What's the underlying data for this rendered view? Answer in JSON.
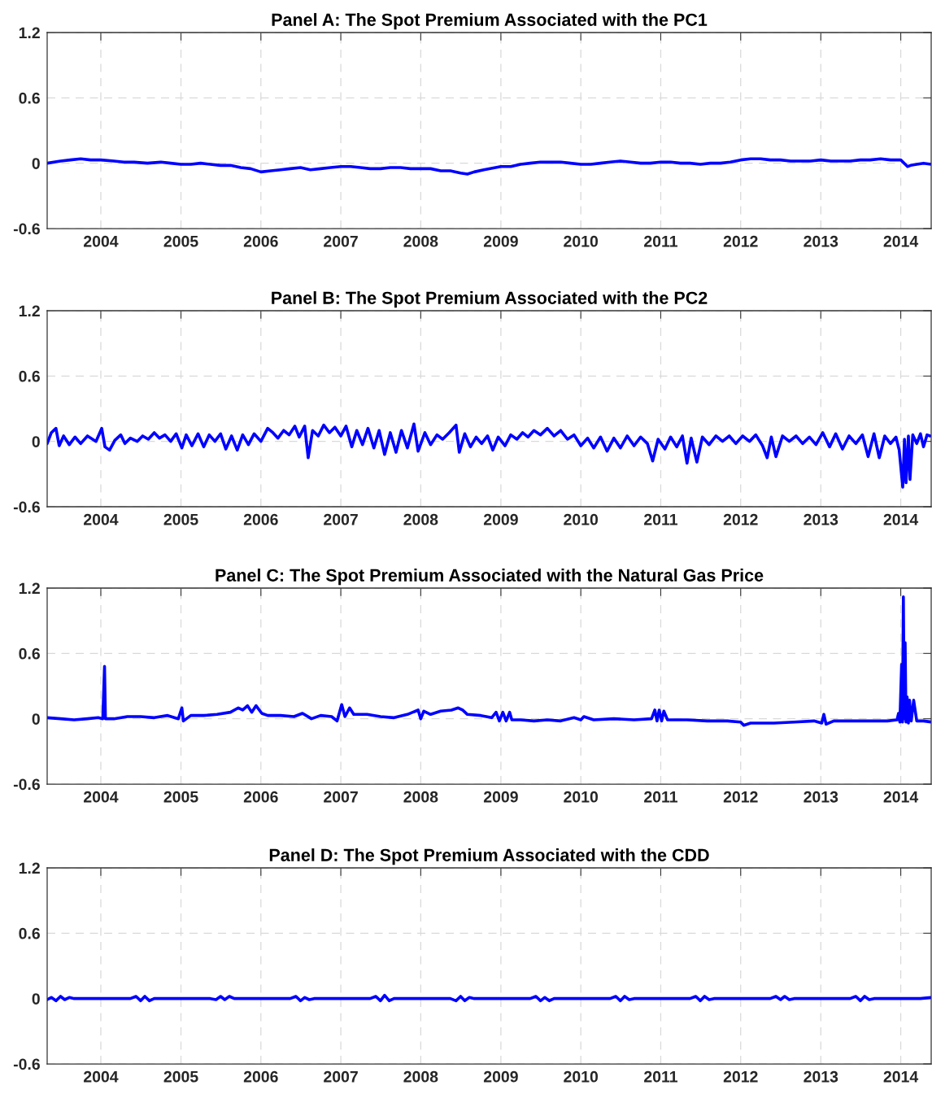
{
  "chart_data": [
    {
      "type": "line",
      "title": "Panel A: The Spot Premium Associated with the PC1",
      "xlim": [
        "2003-05-01",
        "2014-05-20"
      ],
      "ylim": [
        -0.6,
        1.2
      ],
      "yticks": [
        -0.6,
        0,
        0.6,
        1.2
      ],
      "xticks": [
        {
          "value": "2004-01-01",
          "label": "2004"
        },
        {
          "value": "2005-01-01",
          "label": "2005"
        },
        {
          "value": "2006-01-01",
          "label": "2006"
        },
        {
          "value": "2007-01-01",
          "label": "2007"
        },
        {
          "value": "2008-01-01",
          "label": "2008"
        },
        {
          "value": "2009-01-01",
          "label": "2009"
        },
        {
          "value": "2010-01-01",
          "label": "2010"
        },
        {
          "value": "2011-01-01",
          "label": "2011"
        },
        {
          "value": "2012-01-01",
          "label": "2012"
        },
        {
          "value": "2013-01-01",
          "label": "2013"
        },
        {
          "value": "2014-01-01",
          "label": "2014"
        }
      ],
      "grid": true,
      "series": [
        {
          "color": "#0000ff",
          "x": [
            "2003-05-01",
            "2003-07-01",
            "2003-08-15",
            "2003-10-01",
            "2003-11-15",
            "2004-01-01",
            "2004-03-01",
            "2004-04-15",
            "2004-06-01",
            "2004-08-01",
            "2004-10-01",
            "2004-11-15",
            "2005-01-01",
            "2005-02-15",
            "2005-04-01",
            "2005-05-15",
            "2005-07-01",
            "2005-08-15",
            "2005-10-01",
            "2005-11-15",
            "2006-01-01",
            "2006-02-15",
            "2006-04-01",
            "2006-05-15",
            "2006-07-01",
            "2006-08-15",
            "2006-10-01",
            "2006-11-15",
            "2007-01-01",
            "2007-02-15",
            "2007-04-01",
            "2007-05-15",
            "2007-07-01",
            "2007-08-15",
            "2007-10-01",
            "2007-11-15",
            "2008-01-01",
            "2008-02-15",
            "2008-04-01",
            "2008-05-15",
            "2008-07-01",
            "2008-08-01",
            "2008-09-01",
            "2008-10-15",
            "2009-01-01",
            "2009-02-15",
            "2009-04-01",
            "2009-05-15",
            "2009-07-01",
            "2009-08-15",
            "2009-10-01",
            "2009-11-15",
            "2010-01-01",
            "2010-02-15",
            "2010-04-01",
            "2010-05-15",
            "2010-07-01",
            "2010-08-15",
            "2010-10-01",
            "2010-11-15",
            "2011-01-01",
            "2011-02-15",
            "2011-04-01",
            "2011-05-15",
            "2011-07-01",
            "2011-08-15",
            "2011-10-01",
            "2011-11-15",
            "2012-01-01",
            "2012-02-15",
            "2012-04-01",
            "2012-05-15",
            "2012-07-01",
            "2012-08-15",
            "2012-10-01",
            "2012-11-15",
            "2013-01-01",
            "2013-02-15",
            "2013-04-01",
            "2013-05-15",
            "2013-07-01",
            "2013-08-15",
            "2013-10-01",
            "2013-11-15",
            "2014-01-01",
            "2014-02-01",
            "2014-02-15",
            "2014-03-15",
            "2014-04-15",
            "2014-05-20"
          ],
          "values": [
            0.0,
            0.02,
            0.03,
            0.04,
            0.03,
            0.03,
            0.02,
            0.01,
            0.01,
            0.0,
            0.01,
            0.0,
            -0.01,
            -0.01,
            0.0,
            -0.01,
            -0.02,
            -0.02,
            -0.04,
            -0.05,
            -0.08,
            -0.07,
            -0.06,
            -0.05,
            -0.04,
            -0.06,
            -0.05,
            -0.04,
            -0.03,
            -0.03,
            -0.04,
            -0.05,
            -0.05,
            -0.04,
            -0.04,
            -0.05,
            -0.05,
            -0.05,
            -0.07,
            -0.07,
            -0.09,
            -0.1,
            -0.08,
            -0.06,
            -0.03,
            -0.03,
            -0.01,
            0.0,
            0.01,
            0.01,
            0.01,
            0.0,
            -0.01,
            -0.01,
            0.0,
            0.01,
            0.02,
            0.01,
            0.0,
            0.0,
            0.01,
            0.01,
            0.0,
            0.0,
            -0.01,
            0.0,
            0.0,
            0.01,
            0.03,
            0.04,
            0.04,
            0.03,
            0.03,
            0.02,
            0.02,
            0.02,
            0.03,
            0.02,
            0.02,
            0.02,
            0.03,
            0.03,
            0.04,
            0.03,
            0.03,
            -0.03,
            -0.02,
            -0.01,
            0.0,
            -0.01
          ]
        }
      ]
    },
    {
      "type": "line",
      "title": "Panel B: The Spot Premium Associated with the PC2",
      "xlim": [
        "2003-05-01",
        "2014-05-20"
      ],
      "ylim": [
        -0.6,
        1.2
      ],
      "yticks": [
        -0.6,
        0,
        0.6,
        1.2
      ],
      "xticks": [
        {
          "value": "2004-01-01",
          "label": "2004"
        },
        {
          "value": "2005-01-01",
          "label": "2005"
        },
        {
          "value": "2006-01-01",
          "label": "2006"
        },
        {
          "value": "2007-01-01",
          "label": "2007"
        },
        {
          "value": "2008-01-01",
          "label": "2008"
        },
        {
          "value": "2009-01-01",
          "label": "2009"
        },
        {
          "value": "2010-01-01",
          "label": "2010"
        },
        {
          "value": "2011-01-01",
          "label": "2011"
        },
        {
          "value": "2012-01-01",
          "label": "2012"
        },
        {
          "value": "2013-01-01",
          "label": "2013"
        },
        {
          "value": "2014-01-01",
          "label": "2014"
        }
      ],
      "grid": true,
      "series": [
        {
          "color": "#0000ff",
          "x": [
            "2003-05-01",
            "2003-05-20",
            "2003-06-10",
            "2003-06-25",
            "2003-07-15",
            "2003-08-10",
            "2003-09-05",
            "2003-10-01",
            "2003-11-01",
            "2003-12-10",
            "2004-01-05",
            "2004-01-20",
            "2004-02-10",
            "2004-03-05",
            "2004-04-01",
            "2004-04-20",
            "2004-05-15",
            "2004-06-15",
            "2004-07-10",
            "2004-08-05",
            "2004-09-01",
            "2004-09-25",
            "2004-10-20",
            "2004-11-15",
            "2004-12-10",
            "2005-01-05",
            "2005-01-25",
            "2005-02-20",
            "2005-03-20",
            "2005-04-15",
            "2005-05-10",
            "2005-06-05",
            "2005-07-01",
            "2005-07-25",
            "2005-08-20",
            "2005-09-15",
            "2005-10-10",
            "2005-11-05",
            "2005-12-01",
            "2006-01-01",
            "2006-02-01",
            "2006-02-25",
            "2006-03-20",
            "2006-04-15",
            "2006-05-10",
            "2006-06-05",
            "2006-06-25",
            "2006-07-20",
            "2006-08-05",
            "2006-08-25",
            "2006-09-20",
            "2006-10-15",
            "2006-11-10",
            "2006-12-05",
            "2007-01-01",
            "2007-01-25",
            "2007-02-20",
            "2007-03-15",
            "2007-04-10",
            "2007-05-05",
            "2007-06-01",
            "2007-06-25",
            "2007-07-20",
            "2007-08-15",
            "2007-09-10",
            "2007-10-05",
            "2007-11-01",
            "2007-12-01",
            "2007-12-20",
            "2008-01-20",
            "2008-02-15",
            "2008-03-15",
            "2008-04-10",
            "2008-05-10",
            "2008-06-10",
            "2008-06-25",
            "2008-07-20",
            "2008-08-15",
            "2008-09-10",
            "2008-10-05",
            "2008-11-01",
            "2008-11-25",
            "2008-12-20",
            "2009-01-20",
            "2009-02-15",
            "2009-03-15",
            "2009-04-10",
            "2009-05-05",
            "2009-06-01",
            "2009-07-01",
            "2009-08-01",
            "2009-09-01",
            "2009-10-01",
            "2009-11-01",
            "2009-12-01",
            "2010-01-01",
            "2010-02-01",
            "2010-03-01",
            "2010-04-01",
            "2010-05-01",
            "2010-06-01",
            "2010-07-01",
            "2010-08-01",
            "2010-09-01",
            "2010-10-01",
            "2010-11-01",
            "2010-11-25",
            "2010-12-20",
            "2011-01-20",
            "2011-02-15",
            "2011-03-15",
            "2011-04-10",
            "2011-05-01",
            "2011-05-20",
            "2011-06-15",
            "2011-07-10",
            "2011-08-10",
            "2011-09-10",
            "2011-10-10",
            "2011-11-10",
            "2011-12-10",
            "2012-01-10",
            "2012-02-10",
            "2012-03-10",
            "2012-04-10",
            "2012-05-01",
            "2012-05-20",
            "2012-06-10",
            "2012-07-10",
            "2012-08-10",
            "2012-09-10",
            "2012-10-10",
            "2012-11-10",
            "2012-12-10",
            "2013-01-10",
            "2013-02-10",
            "2013-03-10",
            "2013-04-10",
            "2013-05-10",
            "2013-06-10",
            "2013-07-10",
            "2013-08-05",
            "2013-09-01",
            "2013-09-25",
            "2013-10-20",
            "2013-11-15",
            "2013-12-10",
            "2013-12-25",
            "2014-01-10",
            "2014-01-18",
            "2014-01-25",
            "2014-02-05",
            "2014-02-12",
            "2014-02-25",
            "2014-03-15",
            "2014-04-01",
            "2014-04-15",
            "2014-05-01",
            "2014-05-15"
          ],
          "values": [
            -0.02,
            0.08,
            0.12,
            -0.04,
            0.05,
            -0.03,
            0.04,
            -0.02,
            0.05,
            0.0,
            0.12,
            -0.05,
            -0.08,
            0.01,
            0.06,
            -0.02,
            0.03,
            0.0,
            0.05,
            0.02,
            0.08,
            0.03,
            0.06,
            0.0,
            0.07,
            -0.06,
            0.06,
            -0.04,
            0.07,
            -0.05,
            0.06,
            0.0,
            0.07,
            -0.07,
            0.05,
            -0.08,
            0.06,
            -0.03,
            0.07,
            0.0,
            0.12,
            0.08,
            0.03,
            0.1,
            0.06,
            0.14,
            0.04,
            0.14,
            -0.15,
            0.1,
            0.05,
            0.15,
            0.08,
            0.13,
            0.05,
            0.14,
            -0.05,
            0.1,
            -0.03,
            0.12,
            -0.06,
            0.1,
            -0.12,
            0.08,
            -0.1,
            0.1,
            -0.06,
            0.16,
            -0.09,
            0.08,
            -0.03,
            0.06,
            0.02,
            0.08,
            0.15,
            -0.1,
            0.07,
            -0.05,
            0.04,
            -0.02,
            0.05,
            -0.08,
            0.04,
            -0.04,
            0.06,
            0.02,
            0.08,
            0.04,
            0.1,
            0.06,
            0.12,
            0.05,
            0.1,
            0.02,
            0.06,
            -0.04,
            0.03,
            -0.06,
            0.04,
            -0.09,
            0.03,
            -0.06,
            0.05,
            -0.04,
            0.04,
            -0.02,
            -0.18,
            0.02,
            -0.07,
            0.04,
            -0.05,
            0.05,
            -0.2,
            0.03,
            -0.19,
            0.04,
            -0.03,
            0.05,
            0.0,
            0.05,
            -0.02,
            0.05,
            0.0,
            0.06,
            -0.04,
            -0.15,
            0.04,
            -0.14,
            0.05,
            0.0,
            0.05,
            -0.02,
            0.04,
            -0.03,
            0.08,
            -0.05,
            0.07,
            -0.07,
            0.05,
            -0.02,
            0.06,
            -0.14,
            0.07,
            -0.15,
            0.05,
            -0.02,
            0.04,
            -0.08,
            -0.42,
            0.02,
            -0.38,
            0.05,
            -0.35,
            0.06,
            -0.02,
            0.07,
            -0.05,
            0.06,
            0.05
          ]
        }
      ]
    },
    {
      "type": "line",
      "title": "Panel C: The Spot Premium Associated with the Natural Gas Price",
      "xlim": [
        "2003-05-01",
        "2014-05-20"
      ],
      "ylim": [
        -0.6,
        1.2
      ],
      "yticks": [
        -0.6,
        0,
        0.6,
        1.2
      ],
      "xticks": [
        {
          "value": "2004-01-01",
          "label": "2004"
        },
        {
          "value": "2005-01-01",
          "label": "2005"
        },
        {
          "value": "2006-01-01",
          "label": "2006"
        },
        {
          "value": "2007-01-01",
          "label": "2007"
        },
        {
          "value": "2008-01-01",
          "label": "2008"
        },
        {
          "value": "2009-01-01",
          "label": "2009"
        },
        {
          "value": "2010-01-01",
          "label": "2010"
        },
        {
          "value": "2011-01-01",
          "label": "2011"
        },
        {
          "value": "2012-01-01",
          "label": "2012"
        },
        {
          "value": "2013-01-01",
          "label": "2013"
        },
        {
          "value": "2014-01-01",
          "label": "2014"
        }
      ],
      "grid": true,
      "series": [
        {
          "color": "#0000ff",
          "x": [
            "2003-05-01",
            "2003-07-01",
            "2003-09-01",
            "2003-11-01",
            "2003-12-20",
            "2004-01-10",
            "2004-01-18",
            "2004-01-22",
            "2004-03-01",
            "2004-05-01",
            "2004-07-01",
            "2004-09-01",
            "2004-11-01",
            "2004-12-20",
            "2005-01-05",
            "2005-01-12",
            "2005-02-15",
            "2005-04-15",
            "2005-06-15",
            "2005-08-15",
            "2005-09-20",
            "2005-10-10",
            "2005-11-01",
            "2005-11-20",
            "2005-12-10",
            "2006-01-05",
            "2006-02-01",
            "2006-04-01",
            "2006-06-01",
            "2006-07-10",
            "2006-08-20",
            "2006-10-01",
            "2006-11-20",
            "2006-12-15",
            "2007-01-05",
            "2007-01-20",
            "2007-02-10",
            "2007-03-01",
            "2007-05-01",
            "2007-07-01",
            "2007-09-01",
            "2007-11-01",
            "2007-12-20",
            "2008-01-01",
            "2008-01-15",
            "2008-02-15",
            "2008-04-01",
            "2008-05-20",
            "2008-06-20",
            "2008-07-10",
            "2008-08-01",
            "2008-10-01",
            "2008-11-20",
            "2008-12-10",
            "2008-12-25",
            "2009-01-10",
            "2009-01-25",
            "2009-02-10",
            "2009-02-20",
            "2009-04-01",
            "2009-06-01",
            "2009-08-01",
            "2009-10-01",
            "2009-12-01",
            "2010-01-01",
            "2010-01-15",
            "2010-03-01",
            "2010-06-01",
            "2010-09-01",
            "2010-11-20",
            "2010-12-05",
            "2010-12-15",
            "2010-12-25",
            "2011-01-05",
            "2011-01-15",
            "2011-02-01",
            "2011-05-01",
            "2011-08-01",
            "2011-11-01",
            "2012-01-01",
            "2012-01-15",
            "2012-02-15",
            "2012-06-01",
            "2012-09-01",
            "2012-12-01",
            "2013-01-05",
            "2013-01-15",
            "2013-01-25",
            "2013-03-01",
            "2013-07-01",
            "2013-11-01",
            "2013-12-15",
            "2013-12-22",
            "2013-12-28",
            "2014-01-05",
            "2014-01-09",
            "2014-01-13",
            "2014-01-17",
            "2014-01-21",
            "2014-01-25",
            "2014-01-30",
            "2014-02-05",
            "2014-02-10",
            "2014-02-18",
            "2014-03-01",
            "2014-03-15",
            "2014-04-15",
            "2014-05-20"
          ],
          "values": [
            0.01,
            0.0,
            -0.01,
            0.0,
            0.01,
            0.0,
            0.48,
            0.0,
            0.0,
            0.02,
            0.02,
            0.01,
            0.03,
            0.0,
            0.1,
            -0.02,
            0.03,
            0.03,
            0.04,
            0.06,
            0.1,
            0.08,
            0.12,
            0.06,
            0.12,
            0.05,
            0.03,
            0.03,
            0.02,
            0.05,
            0.0,
            0.03,
            0.02,
            -0.02,
            0.13,
            0.02,
            0.1,
            0.04,
            0.04,
            0.02,
            0.01,
            0.04,
            0.08,
            0.0,
            0.07,
            0.04,
            0.07,
            0.08,
            0.1,
            0.08,
            0.04,
            0.03,
            0.01,
            0.06,
            -0.02,
            0.06,
            -0.02,
            0.06,
            -0.01,
            -0.01,
            -0.02,
            -0.01,
            -0.02,
            0.01,
            -0.01,
            0.02,
            -0.01,
            0.0,
            -0.01,
            0.0,
            0.08,
            -0.02,
            0.08,
            -0.02,
            0.07,
            -0.01,
            -0.01,
            -0.02,
            -0.02,
            -0.03,
            -0.06,
            -0.04,
            -0.04,
            -0.03,
            -0.02,
            -0.04,
            0.04,
            -0.05,
            -0.02,
            -0.02,
            -0.02,
            -0.01,
            0.05,
            -0.03,
            0.5,
            -0.03,
            1.12,
            0.0,
            0.7,
            -0.03,
            0.2,
            -0.04,
            0.17,
            -0.02,
            0.17,
            -0.02,
            -0.02,
            -0.03
          ]
        }
      ]
    },
    {
      "type": "line",
      "title": "Panel D: The Spot Premium Associated with the CDD",
      "xlim": [
        "2003-05-01",
        "2014-05-20"
      ],
      "ylim": [
        -0.6,
        1.2
      ],
      "yticks": [
        -0.6,
        0,
        0.6,
        1.2
      ],
      "xticks": [
        {
          "value": "2004-01-01",
          "label": "2004"
        },
        {
          "value": "2005-01-01",
          "label": "2005"
        },
        {
          "value": "2006-01-01",
          "label": "2006"
        },
        {
          "value": "2007-01-01",
          "label": "2007"
        },
        {
          "value": "2008-01-01",
          "label": "2008"
        },
        {
          "value": "2009-01-01",
          "label": "2009"
        },
        {
          "value": "2010-01-01",
          "label": "2010"
        },
        {
          "value": "2011-01-01",
          "label": "2011"
        },
        {
          "value": "2012-01-01",
          "label": "2012"
        },
        {
          "value": "2013-01-01",
          "label": "2013"
        },
        {
          "value": "2014-01-01",
          "label": "2014"
        }
      ],
      "grid": true,
      "series": [
        {
          "color": "#0000ff",
          "x": [
            "2003-05-01",
            "2003-05-20",
            "2003-06-10",
            "2003-07-01",
            "2003-07-20",
            "2003-08-10",
            "2003-09-01",
            "2004-01-01",
            "2004-05-15",
            "2004-06-10",
            "2004-07-01",
            "2004-07-20",
            "2004-08-10",
            "2004-09-01",
            "2005-05-15",
            "2005-06-10",
            "2005-07-01",
            "2005-07-20",
            "2005-08-10",
            "2005-09-01",
            "2006-05-15",
            "2006-06-10",
            "2006-07-01",
            "2006-07-20",
            "2006-08-10",
            "2006-09-01",
            "2007-05-15",
            "2007-06-10",
            "2007-07-01",
            "2007-07-20",
            "2007-08-10",
            "2007-09-01",
            "2008-05-15",
            "2008-06-10",
            "2008-07-01",
            "2008-07-20",
            "2008-08-10",
            "2008-09-01",
            "2009-05-15",
            "2009-06-10",
            "2009-07-01",
            "2009-07-20",
            "2009-08-10",
            "2009-09-01",
            "2010-05-15",
            "2010-06-10",
            "2010-07-01",
            "2010-07-20",
            "2010-08-10",
            "2010-09-01",
            "2011-05-15",
            "2011-06-10",
            "2011-07-01",
            "2011-07-20",
            "2011-08-10",
            "2011-09-01",
            "2012-05-15",
            "2012-06-10",
            "2012-07-01",
            "2012-07-20",
            "2012-08-10",
            "2012-09-01",
            "2013-05-15",
            "2013-06-10",
            "2013-07-01",
            "2013-07-20",
            "2013-08-10",
            "2013-09-01",
            "2014-04-01",
            "2014-05-20"
          ],
          "values": [
            -0.01,
            0.01,
            -0.02,
            0.02,
            -0.01,
            0.01,
            0.0,
            0.0,
            0.0,
            0.02,
            -0.02,
            0.02,
            -0.02,
            0.0,
            0.0,
            -0.01,
            0.02,
            -0.01,
            0.02,
            0.0,
            0.0,
            0.02,
            -0.02,
            0.01,
            -0.01,
            0.0,
            0.0,
            0.02,
            -0.02,
            0.03,
            -0.02,
            0.0,
            0.0,
            -0.02,
            0.02,
            -0.02,
            0.01,
            0.0,
            0.0,
            0.02,
            -0.02,
            0.01,
            -0.02,
            0.0,
            0.0,
            0.02,
            -0.02,
            0.02,
            -0.01,
            0.0,
            0.0,
            0.02,
            -0.02,
            0.02,
            -0.01,
            0.0,
            0.0,
            0.02,
            -0.01,
            0.02,
            -0.01,
            0.0,
            0.0,
            0.02,
            -0.02,
            0.02,
            -0.01,
            0.0,
            0.0,
            0.01
          ]
        }
      ]
    }
  ]
}
